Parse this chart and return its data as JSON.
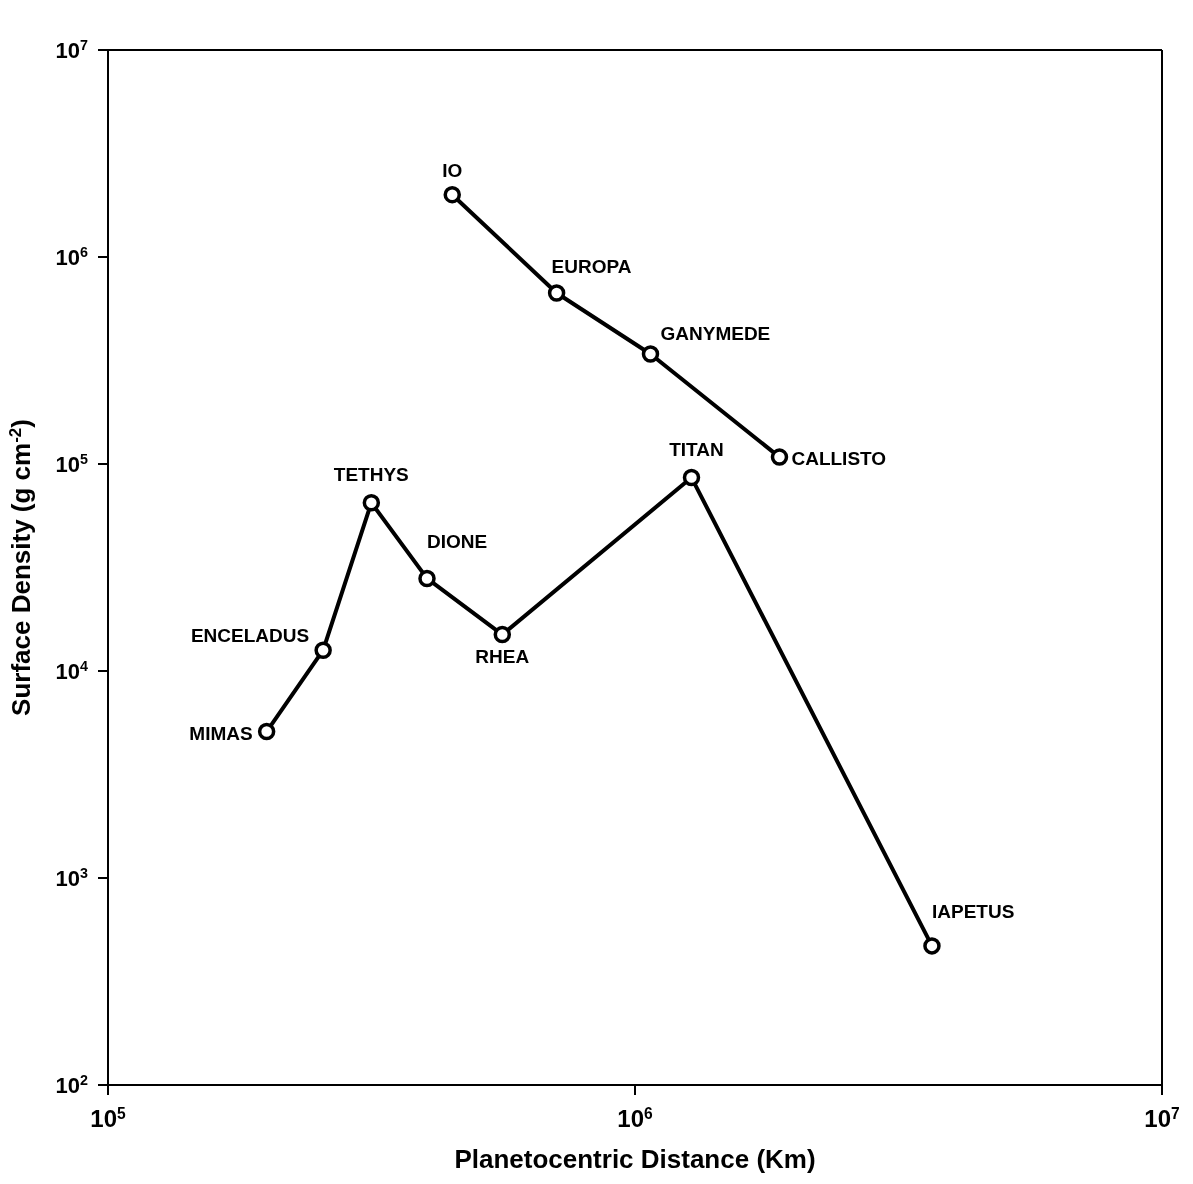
{
  "chart_data": {
    "type": "line",
    "xlabel": "Planetocentric Distance (Km)",
    "ylabel": "Surface Density  (g cm$^{-2}$)",
    "log": "xy",
    "marker": "circle",
    "line_style": "solid",
    "xlim": [
      100000,
      10000000
    ],
    "xticks": [
      {
        "value": 100000,
        "label": "10$^{5}$"
      },
      {
        "value": 1000000,
        "label": "10$^{6}$"
      },
      {
        "value": 10000000,
        "label": "10$^{7}$"
      }
    ],
    "ylim": [
      100,
      10000000
    ],
    "yticks": [
      {
        "value": 100,
        "label": "10$^{2}$"
      },
      {
        "value": 1000,
        "label": "10$^{3}$"
      },
      {
        "value": 10000,
        "label": "10$^{4}$"
      },
      {
        "value": 100000,
        "label": "10$^{5}$"
      },
      {
        "value": 1000000,
        "label": "10$^{6}$"
      },
      {
        "value": 10000000,
        "label": "10$^{7}$"
      }
    ],
    "series": [
      {
        "color": "#000000",
        "x": [
          450000,
          710000,
          1070000,
          1880000
        ],
        "values": [
          2000000,
          670000,
          340000,
          108000
        ]
      },
      {
        "color": "#000000",
        "x": [
          200000,
          256000,
          316000,
          403000,
          560000,
          1280000,
          3660000
        ],
        "values": [
          5100,
          12600,
          65000,
          28000,
          15000,
          86000,
          470
        ]
      }
    ],
    "annotations": [
      {
        "text": "IO",
        "x": 450000,
        "y": 2000000
      },
      {
        "text": "EUROPA",
        "x": 710000,
        "y": 670000
      },
      {
        "text": "GANYMEDE",
        "x": 1070000,
        "y": 340000
      },
      {
        "text": "CALLISTO",
        "x": 1880000,
        "y": 108000
      },
      {
        "text": "MIMAS",
        "x": 200000,
        "y": 5100
      },
      {
        "text": "ENCELADUS",
        "x": 256000,
        "y": 12600
      },
      {
        "text": "TETHYS",
        "x": 316000,
        "y": 65000
      },
      {
        "text": "DIONE",
        "x": 403000,
        "y": 28000
      },
      {
        "text": "RHEA",
        "x": 560000,
        "y": 15000
      },
      {
        "text": "TITAN",
        "x": 1280000,
        "y": 86000
      },
      {
        "text": "IAPETUS",
        "x": 3660000,
        "y": 470
      }
    ]
  }
}
